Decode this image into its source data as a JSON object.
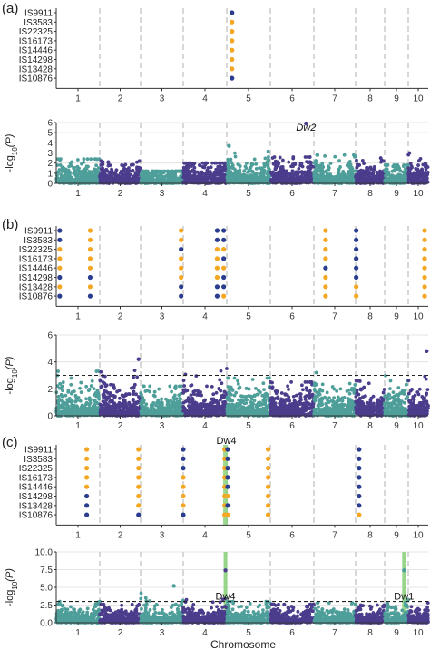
{
  "figure": {
    "accession_labels": [
      "IS9911",
      "IS3583",
      "IS22325",
      "IS16173",
      "IS14446",
      "IS14298",
      "IS13428",
      "IS10876"
    ],
    "chromosome_ticks": [
      "1",
      "2",
      "3",
      "4",
      "5",
      "6",
      "7",
      "8",
      "9",
      "10"
    ],
    "xlabel": "Chromosome",
    "ylabel_log": "-log",
    "ylabel_sub": "10",
    "ylabel_arg": "(P)",
    "colors": {
      "orange": "#F5A623",
      "blue": "#2B3D8F",
      "manhattan_teal": "#4E9E9A",
      "manhattan_purple": "#4B3C8C",
      "highlight": "#8CD17D",
      "grid": "#DDDDDD"
    }
  },
  "chart_data": [
    {
      "panel": "(a)",
      "type": "scatter",
      "subtype": "haplotype",
      "markers": [
        {
          "chromosome_pos": 4.62,
          "alleles": [
            "blue",
            "orange",
            "orange",
            "orange",
            "orange",
            "orange",
            "orange",
            "blue"
          ]
        }
      ]
    },
    {
      "panel": "(a)",
      "type": "scatter",
      "subtype": "manhattan",
      "ylim": [
        0,
        6
      ],
      "yticks": [
        "0",
        "1",
        "2",
        "3",
        "4",
        "5",
        "6"
      ],
      "threshold": 3,
      "peaks": [
        {
          "chromosome_pos": 6.32,
          "value": 5.9,
          "label": "Dw2"
        },
        {
          "chromosome_pos": 4.55,
          "value": 3.7,
          "label": ""
        }
      ]
    },
    {
      "panel": "(b)",
      "type": "scatter",
      "subtype": "haplotype",
      "markers": [
        {
          "chromosome_pos": 0.58,
          "alleles": [
            "blue",
            "blue",
            "orange",
            "orange",
            "orange",
            "blue",
            "orange",
            "blue"
          ]
        },
        {
          "chromosome_pos": 1.28,
          "alleles": [
            "orange",
            "orange",
            "orange",
            "orange",
            "orange",
            "blue",
            "orange",
            "blue"
          ]
        },
        {
          "chromosome_pos": 3.45,
          "alleles": [
            "orange",
            "orange",
            "blue",
            "orange",
            "orange",
            "orange",
            "blue",
            "blue"
          ]
        },
        {
          "chromosome_pos": 4.28,
          "alleles": [
            "blue",
            "blue",
            "orange",
            "orange",
            "orange",
            "orange",
            "blue",
            "blue"
          ]
        },
        {
          "chromosome_pos": 4.43,
          "alleles": [
            "blue",
            "blue",
            "orange",
            "blue",
            "orange",
            "blue",
            "blue",
            "orange"
          ]
        },
        {
          "chromosome_pos": 6.78,
          "alleles": [
            "orange",
            "orange",
            "orange",
            "orange",
            "blue",
            "orange",
            "orange",
            "orange"
          ]
        },
        {
          "chromosome_pos": 7.52,
          "alleles": [
            "blue",
            "blue",
            "blue",
            "blue",
            "blue",
            "blue",
            "orange",
            "orange"
          ]
        },
        {
          "chromosome_pos": 10.32,
          "alleles": [
            "orange",
            "orange",
            "orange",
            "orange",
            "orange",
            "orange",
            "orange",
            "orange"
          ]
        }
      ]
    },
    {
      "panel": "(b)",
      "type": "scatter",
      "subtype": "manhattan",
      "ylim": [
        0,
        6
      ],
      "yticks": [
        "0",
        "2",
        "4",
        "6"
      ],
      "threshold": 3,
      "peaks": [
        {
          "chromosome_pos": 2.45,
          "value": 4.2,
          "label": ""
        },
        {
          "chromosome_pos": 10.42,
          "value": 4.8,
          "label": ""
        }
      ]
    },
    {
      "panel": "(c)",
      "type": "scatter",
      "subtype": "haplotype",
      "annotation": "Dw4",
      "highlight_pos": 4.47,
      "markers": [
        {
          "chromosome_pos": 1.2,
          "alleles": [
            "orange",
            "orange",
            "orange",
            "orange",
            "orange",
            "blue",
            "blue",
            "blue"
          ]
        },
        {
          "chromosome_pos": 2.45,
          "alleles": [
            "orange",
            "orange",
            "orange",
            "orange",
            "orange",
            "orange",
            "orange",
            "blue"
          ]
        },
        {
          "chromosome_pos": 3.5,
          "alleles": [
            "blue",
            "blue",
            "blue",
            "orange",
            "orange",
            "orange",
            "orange",
            "blue"
          ]
        },
        {
          "chromosome_pos": 4.45,
          "alleles": [
            "orange",
            "orange",
            "orange",
            "orange",
            "orange",
            "orange",
            "orange",
            "orange"
          ]
        },
        {
          "chromosome_pos": 4.52,
          "alleles": [
            "blue",
            "blue",
            "blue",
            "blue",
            "blue",
            "orange",
            "blue",
            "orange"
          ]
        },
        {
          "chromosome_pos": 5.45,
          "alleles": [
            "orange",
            "orange",
            "orange",
            "orange",
            "orange",
            "orange",
            "orange",
            "orange"
          ]
        },
        {
          "chromosome_pos": 7.62,
          "alleles": [
            "blue",
            "blue",
            "blue",
            "blue",
            "blue",
            "blue",
            "blue",
            "orange"
          ]
        }
      ]
    },
    {
      "panel": "(c)",
      "type": "scatter",
      "subtype": "manhattan",
      "ylim": [
        0,
        10
      ],
      "yticks": [
        "0.0",
        "2.5",
        "5.0",
        "7.5",
        "10.0"
      ],
      "threshold": 3,
      "highlights": [
        4.47,
        9.32
      ],
      "peaks": [
        {
          "chromosome_pos": 4.47,
          "value": 7.4,
          "label": "Dw4"
        },
        {
          "chromosome_pos": 9.32,
          "value": 7.4,
          "label": "Dw1"
        },
        {
          "chromosome_pos": 3.28,
          "value": 5.2,
          "label": ""
        }
      ]
    }
  ]
}
